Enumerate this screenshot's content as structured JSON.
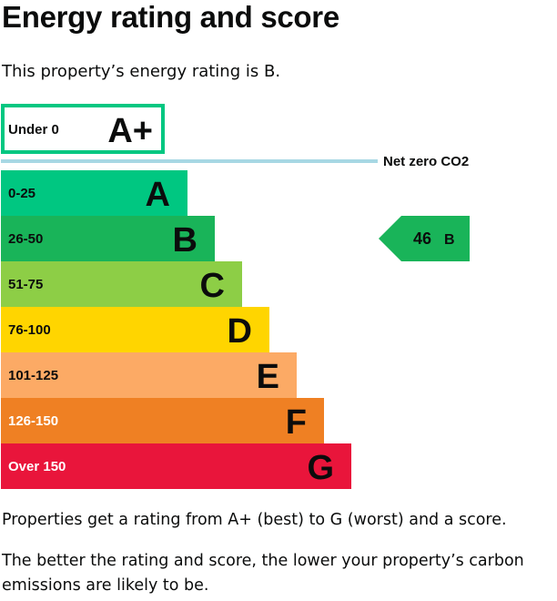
{
  "page": {
    "title": "Energy rating and score",
    "intro": "This property’s energy rating is B.",
    "footer_1": "Properties get a rating from A+ (best) to G (worst) and a score.",
    "footer_2": "The better the rating and score, the lower your property’s carbon emissions are likely to be."
  },
  "chart_data": {
    "type": "bar",
    "bands": [
      {
        "range": "Under 0",
        "letter": "A+",
        "color": "#00c781",
        "style": "outline"
      },
      {
        "range": "0-25",
        "letter": "A",
        "color": "#00c781"
      },
      {
        "range": "26-50",
        "letter": "B",
        "color": "#19b459"
      },
      {
        "range": "51-75",
        "letter": "C",
        "color": "#8dce46"
      },
      {
        "range": "76-100",
        "letter": "D",
        "color": "#ffd500"
      },
      {
        "range": "101-125",
        "letter": "E",
        "color": "#fcaa65"
      },
      {
        "range": "126-150",
        "letter": "F",
        "color": "#ef8023"
      },
      {
        "range": "Over 150",
        "letter": "G",
        "color": "#e9153b"
      }
    ],
    "net_zero_label": "Net zero CO2",
    "net_zero_color": "#a7d8e4",
    "current": {
      "score": "46",
      "letter": "B",
      "band_index": 2,
      "color": "#19b459"
    }
  }
}
